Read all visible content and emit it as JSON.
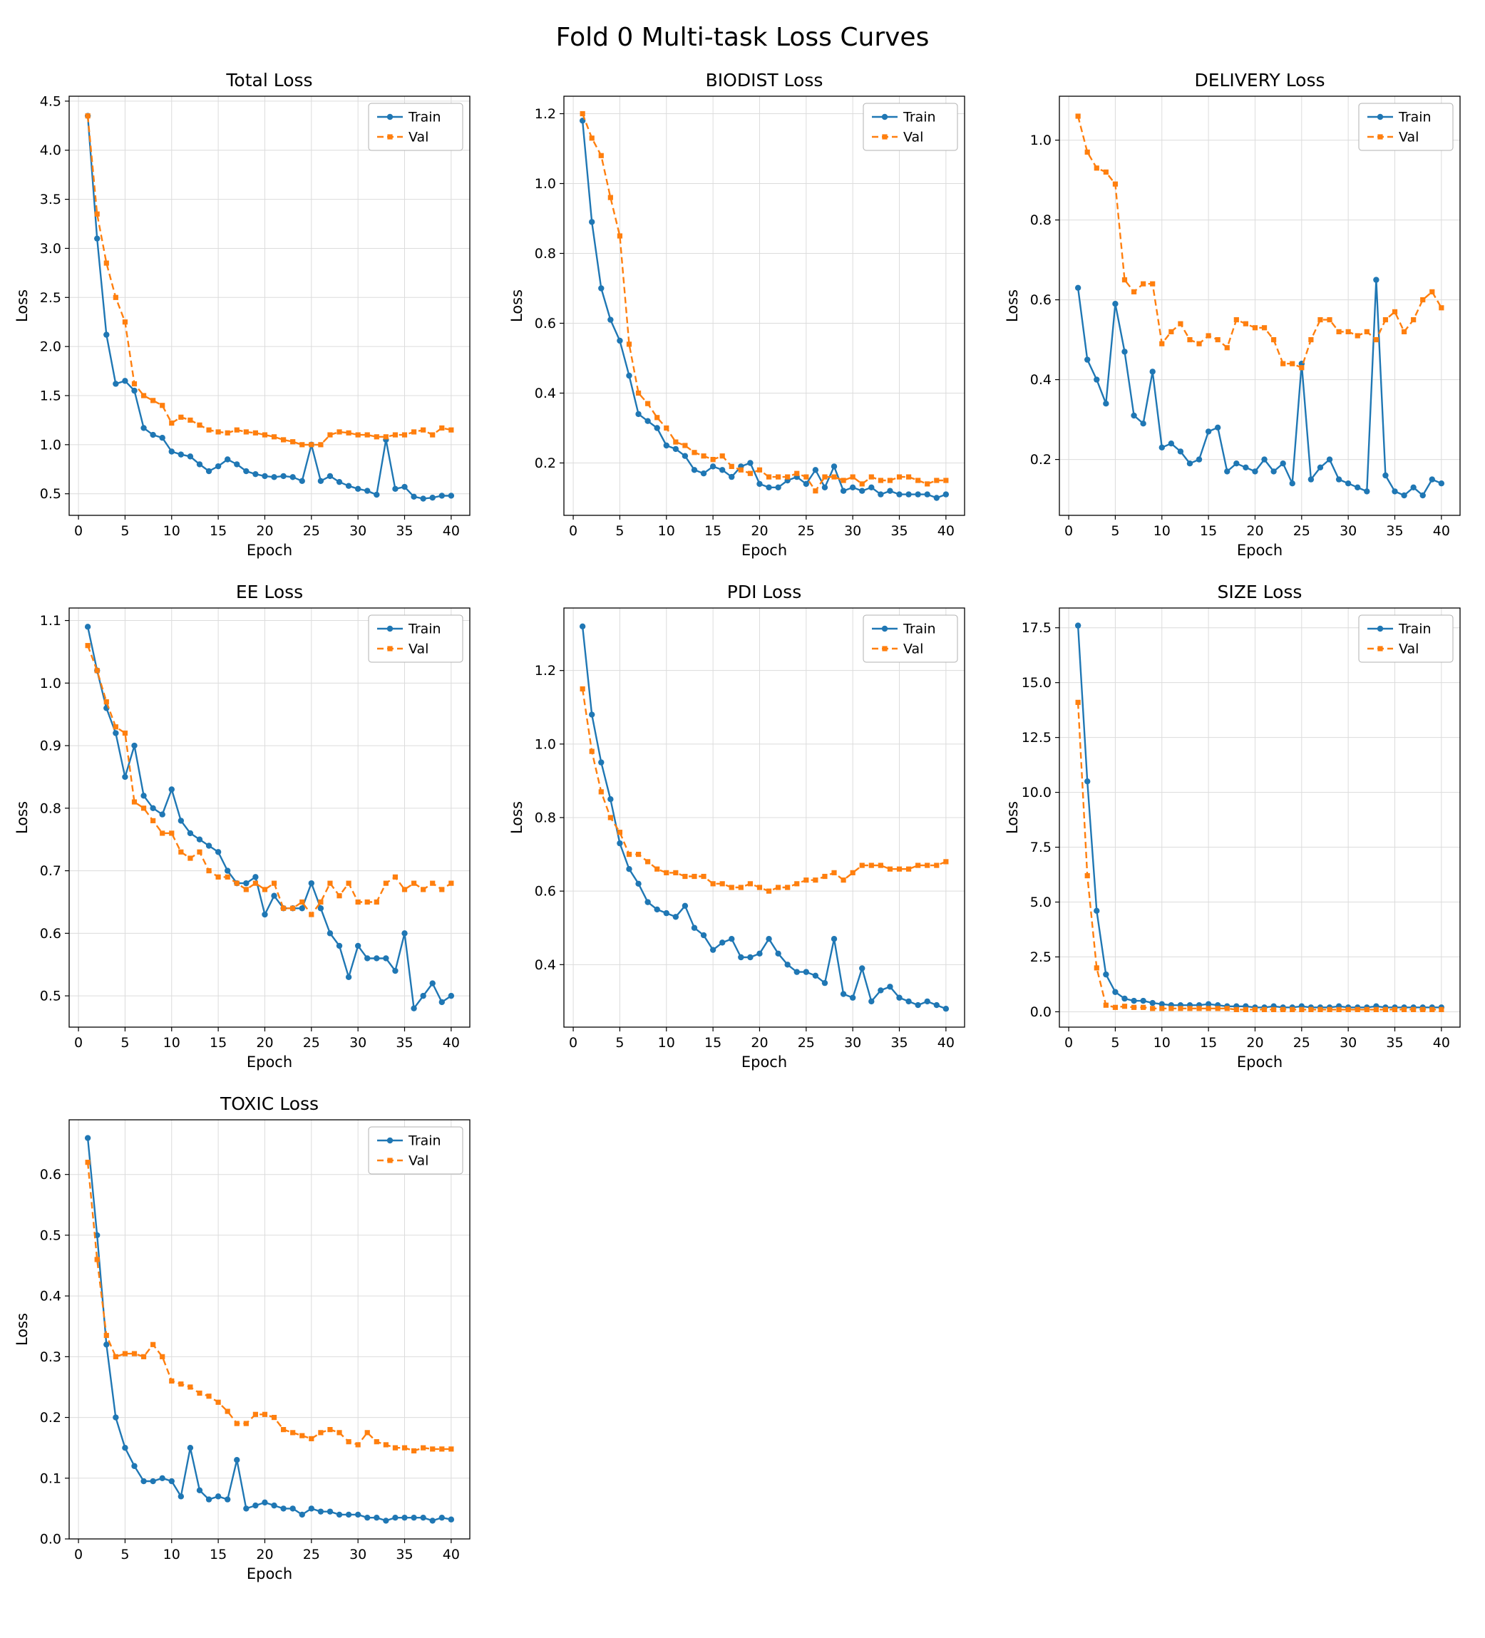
{
  "figure": {
    "title": "Fold 0 Multi-task Loss Curves"
  },
  "legend": {
    "train_label": "Train",
    "val_label": "Val",
    "position": "upper right"
  },
  "colors": {
    "train": "#1f77b4",
    "val": "#ff7f0e"
  },
  "epochs": [
    1,
    2,
    3,
    4,
    5,
    6,
    7,
    8,
    9,
    10,
    11,
    12,
    13,
    14,
    15,
    16,
    17,
    18,
    19,
    20,
    21,
    22,
    23,
    24,
    25,
    26,
    27,
    28,
    29,
    30,
    31,
    32,
    33,
    34,
    35,
    36,
    37,
    38,
    39,
    40
  ],
  "chart_data": [
    {
      "type": "line",
      "title": "Total Loss",
      "xlabel": "Epoch",
      "ylabel": "Loss",
      "xlim": [
        -1,
        42
      ],
      "ylim": [
        0.28,
        4.55
      ],
      "grid": true,
      "legend_position": "upper right",
      "xticks": [
        0,
        5,
        10,
        15,
        20,
        25,
        30,
        35,
        40
      ],
      "yticks": [
        0.5,
        1.0,
        1.5,
        2.0,
        2.5,
        3.0,
        3.5,
        4.0,
        4.5
      ],
      "series": [
        {
          "name": "Train",
          "color": "#1f77b4",
          "marker": "circle",
          "line": "solid",
          "values": [
            4.35,
            3.1,
            2.12,
            1.62,
            1.65,
            1.55,
            1.17,
            1.1,
            1.07,
            0.93,
            0.9,
            0.88,
            0.8,
            0.73,
            0.78,
            0.85,
            0.8,
            0.73,
            0.7,
            0.68,
            0.67,
            0.68,
            0.67,
            0.63,
            1.0,
            0.63,
            0.68,
            0.62,
            0.58,
            0.55,
            0.53,
            0.49,
            1.05,
            0.55,
            0.57,
            0.47,
            0.45,
            0.46,
            0.48,
            0.48
          ]
        },
        {
          "name": "Val",
          "color": "#ff7f0e",
          "marker": "square",
          "line": "dashed",
          "values": [
            4.35,
            3.35,
            2.85,
            2.5,
            2.25,
            1.62,
            1.5,
            1.45,
            1.4,
            1.22,
            1.28,
            1.25,
            1.2,
            1.15,
            1.13,
            1.12,
            1.15,
            1.13,
            1.12,
            1.1,
            1.08,
            1.05,
            1.03,
            1.0,
            1.0,
            1.0,
            1.1,
            1.13,
            1.12,
            1.1,
            1.1,
            1.08,
            1.08,
            1.1,
            1.1,
            1.13,
            1.15,
            1.1,
            1.17,
            1.15
          ]
        }
      ]
    },
    {
      "type": "line",
      "title": "BIODIST Loss",
      "xlabel": "Epoch",
      "ylabel": "Loss",
      "xlim": [
        -1,
        42
      ],
      "ylim": [
        0.05,
        1.25
      ],
      "grid": true,
      "legend_position": "upper right",
      "xticks": [
        0,
        5,
        10,
        15,
        20,
        25,
        30,
        35,
        40
      ],
      "yticks": [
        0.2,
        0.4,
        0.6,
        0.8,
        1.0,
        1.2
      ],
      "series": [
        {
          "name": "Train",
          "color": "#1f77b4",
          "marker": "circle",
          "line": "solid",
          "values": [
            1.18,
            0.89,
            0.7,
            0.61,
            0.55,
            0.45,
            0.34,
            0.32,
            0.3,
            0.25,
            0.24,
            0.22,
            0.18,
            0.17,
            0.19,
            0.18,
            0.16,
            0.19,
            0.2,
            0.14,
            0.13,
            0.13,
            0.15,
            0.16,
            0.14,
            0.18,
            0.13,
            0.19,
            0.12,
            0.13,
            0.12,
            0.13,
            0.11,
            0.12,
            0.11,
            0.11,
            0.11,
            0.11,
            0.1,
            0.11
          ]
        },
        {
          "name": "Val",
          "color": "#ff7f0e",
          "marker": "square",
          "line": "dashed",
          "values": [
            1.2,
            1.13,
            1.08,
            0.96,
            0.85,
            0.54,
            0.4,
            0.37,
            0.33,
            0.3,
            0.26,
            0.25,
            0.23,
            0.22,
            0.21,
            0.22,
            0.19,
            0.18,
            0.17,
            0.18,
            0.16,
            0.16,
            0.16,
            0.17,
            0.16,
            0.12,
            0.16,
            0.16,
            0.15,
            0.16,
            0.14,
            0.16,
            0.15,
            0.15,
            0.16,
            0.16,
            0.15,
            0.14,
            0.15,
            0.15
          ]
        }
      ]
    },
    {
      "type": "line",
      "title": "DELIVERY Loss",
      "xlabel": "Epoch",
      "ylabel": "Loss",
      "xlim": [
        -1,
        42
      ],
      "ylim": [
        0.06,
        1.11
      ],
      "grid": true,
      "legend_position": "upper right",
      "xticks": [
        0,
        5,
        10,
        15,
        20,
        25,
        30,
        35,
        40
      ],
      "yticks": [
        0.2,
        0.4,
        0.6,
        0.8,
        1.0
      ],
      "series": [
        {
          "name": "Train",
          "color": "#1f77b4",
          "marker": "circle",
          "line": "solid",
          "values": [
            0.63,
            0.45,
            0.4,
            0.34,
            0.59,
            0.47,
            0.31,
            0.29,
            0.42,
            0.23,
            0.24,
            0.22,
            0.19,
            0.2,
            0.27,
            0.28,
            0.17,
            0.19,
            0.18,
            0.17,
            0.2,
            0.17,
            0.19,
            0.14,
            0.44,
            0.15,
            0.18,
            0.2,
            0.15,
            0.14,
            0.13,
            0.12,
            0.65,
            0.16,
            0.12,
            0.11,
            0.13,
            0.11,
            0.15,
            0.14
          ]
        },
        {
          "name": "Val",
          "color": "#ff7f0e",
          "marker": "square",
          "line": "dashed",
          "values": [
            1.06,
            0.97,
            0.93,
            0.92,
            0.89,
            0.65,
            0.62,
            0.64,
            0.64,
            0.49,
            0.52,
            0.54,
            0.5,
            0.49,
            0.51,
            0.5,
            0.48,
            0.55,
            0.54,
            0.53,
            0.53,
            0.5,
            0.44,
            0.44,
            0.43,
            0.5,
            0.55,
            0.55,
            0.52,
            0.52,
            0.51,
            0.52,
            0.5,
            0.55,
            0.57,
            0.52,
            0.55,
            0.6,
            0.62,
            0.58
          ]
        }
      ]
    },
    {
      "type": "line",
      "title": "EE Loss",
      "xlabel": "Epoch",
      "ylabel": "Loss",
      "xlim": [
        -1,
        42
      ],
      "ylim": [
        0.45,
        1.12
      ],
      "grid": true,
      "legend_position": "upper right",
      "xticks": [
        0,
        5,
        10,
        15,
        20,
        25,
        30,
        35,
        40
      ],
      "yticks": [
        0.5,
        0.6,
        0.7,
        0.8,
        0.9,
        1.0,
        1.1
      ],
      "series": [
        {
          "name": "Train",
          "color": "#1f77b4",
          "marker": "circle",
          "line": "solid",
          "values": [
            1.09,
            1.02,
            0.96,
            0.92,
            0.85,
            0.9,
            0.82,
            0.8,
            0.79,
            0.83,
            0.78,
            0.76,
            0.75,
            0.74,
            0.73,
            0.7,
            0.68,
            0.68,
            0.69,
            0.63,
            0.66,
            0.64,
            0.64,
            0.64,
            0.68,
            0.64,
            0.6,
            0.58,
            0.53,
            0.58,
            0.56,
            0.56,
            0.56,
            0.54,
            0.6,
            0.48,
            0.5,
            0.52,
            0.49,
            0.5
          ]
        },
        {
          "name": "Val",
          "color": "#ff7f0e",
          "marker": "square",
          "line": "dashed",
          "values": [
            1.06,
            1.02,
            0.97,
            0.93,
            0.92,
            0.81,
            0.8,
            0.78,
            0.76,
            0.76,
            0.73,
            0.72,
            0.73,
            0.7,
            0.69,
            0.69,
            0.68,
            0.67,
            0.68,
            0.67,
            0.68,
            0.64,
            0.64,
            0.65,
            0.63,
            0.65,
            0.68,
            0.66,
            0.68,
            0.65,
            0.65,
            0.65,
            0.68,
            0.69,
            0.67,
            0.68,
            0.67,
            0.68,
            0.67,
            0.68
          ]
        }
      ]
    },
    {
      "type": "line",
      "title": "PDI Loss",
      "xlabel": "Epoch",
      "ylabel": "Loss",
      "xlim": [
        -1,
        42
      ],
      "ylim": [
        0.23,
        1.37
      ],
      "grid": true,
      "legend_position": "upper right",
      "xticks": [
        0,
        5,
        10,
        15,
        20,
        25,
        30,
        35,
        40
      ],
      "yticks": [
        0.4,
        0.6,
        0.8,
        1.0,
        1.2
      ],
      "series": [
        {
          "name": "Train",
          "color": "#1f77b4",
          "marker": "circle",
          "line": "solid",
          "values": [
            1.32,
            1.08,
            0.95,
            0.85,
            0.73,
            0.66,
            0.62,
            0.57,
            0.55,
            0.54,
            0.53,
            0.56,
            0.5,
            0.48,
            0.44,
            0.46,
            0.47,
            0.42,
            0.42,
            0.43,
            0.47,
            0.43,
            0.4,
            0.38,
            0.38,
            0.37,
            0.35,
            0.47,
            0.32,
            0.31,
            0.39,
            0.3,
            0.33,
            0.34,
            0.31,
            0.3,
            0.29,
            0.3,
            0.29,
            0.28
          ]
        },
        {
          "name": "Val",
          "color": "#ff7f0e",
          "marker": "square",
          "line": "dashed",
          "values": [
            1.15,
            0.98,
            0.87,
            0.8,
            0.76,
            0.7,
            0.7,
            0.68,
            0.66,
            0.65,
            0.65,
            0.64,
            0.64,
            0.64,
            0.62,
            0.62,
            0.61,
            0.61,
            0.62,
            0.61,
            0.6,
            0.61,
            0.61,
            0.62,
            0.63,
            0.63,
            0.64,
            0.65,
            0.63,
            0.65,
            0.67,
            0.67,
            0.67,
            0.66,
            0.66,
            0.66,
            0.67,
            0.67,
            0.67,
            0.68
          ]
        }
      ]
    },
    {
      "type": "line",
      "title": "SIZE Loss",
      "xlabel": "Epoch",
      "ylabel": "Loss",
      "xlim": [
        -1,
        42
      ],
      "ylim": [
        -0.7,
        18.4
      ],
      "grid": true,
      "legend_position": "upper right",
      "xticks": [
        0,
        5,
        10,
        15,
        20,
        25,
        30,
        35,
        40
      ],
      "yticks": [
        0.0,
        2.5,
        5.0,
        7.5,
        10.0,
        12.5,
        15.0,
        17.5
      ],
      "series": [
        {
          "name": "Train",
          "color": "#1f77b4",
          "marker": "circle",
          "line": "solid",
          "values": [
            17.6,
            10.5,
            4.6,
            1.7,
            0.9,
            0.6,
            0.5,
            0.5,
            0.4,
            0.35,
            0.3,
            0.3,
            0.3,
            0.3,
            0.35,
            0.3,
            0.25,
            0.25,
            0.25,
            0.2,
            0.2,
            0.25,
            0.2,
            0.2,
            0.25,
            0.2,
            0.2,
            0.2,
            0.25,
            0.2,
            0.2,
            0.2,
            0.25,
            0.2,
            0.2,
            0.2,
            0.2,
            0.2,
            0.2,
            0.2
          ]
        },
        {
          "name": "Val",
          "color": "#ff7f0e",
          "marker": "square",
          "line": "dashed",
          "values": [
            14.1,
            6.2,
            2.0,
            0.3,
            0.2,
            0.25,
            0.2,
            0.2,
            0.15,
            0.15,
            0.15,
            0.15,
            0.15,
            0.15,
            0.15,
            0.15,
            0.15,
            0.1,
            0.1,
            0.1,
            0.1,
            0.1,
            0.1,
            0.1,
            0.1,
            0.1,
            0.1,
            0.1,
            0.1,
            0.1,
            0.1,
            0.1,
            0.1,
            0.1,
            0.1,
            0.1,
            0.1,
            0.1,
            0.1,
            0.1
          ]
        }
      ]
    },
    {
      "type": "line",
      "title": "TOXIC Loss",
      "xlabel": "Epoch",
      "ylabel": "Loss",
      "xlim": [
        -1,
        42
      ],
      "ylim": [
        0.0,
        0.69
      ],
      "grid": true,
      "legend_position": "upper right",
      "xticks": [
        0,
        5,
        10,
        15,
        20,
        25,
        30,
        35,
        40
      ],
      "yticks": [
        0.0,
        0.1,
        0.2,
        0.3,
        0.4,
        0.5,
        0.6
      ],
      "series": [
        {
          "name": "Train",
          "color": "#1f77b4",
          "marker": "circle",
          "line": "solid",
          "values": [
            0.66,
            0.5,
            0.32,
            0.2,
            0.15,
            0.12,
            0.095,
            0.095,
            0.1,
            0.095,
            0.07,
            0.15,
            0.08,
            0.065,
            0.07,
            0.065,
            0.13,
            0.05,
            0.055,
            0.06,
            0.055,
            0.05,
            0.05,
            0.04,
            0.05,
            0.045,
            0.045,
            0.04,
            0.04,
            0.04,
            0.035,
            0.035,
            0.03,
            0.035,
            0.035,
            0.035,
            0.035,
            0.03,
            0.035,
            0.032
          ]
        },
        {
          "name": "Val",
          "color": "#ff7f0e",
          "marker": "square",
          "line": "dashed",
          "values": [
            0.62,
            0.46,
            0.335,
            0.3,
            0.305,
            0.305,
            0.3,
            0.32,
            0.3,
            0.26,
            0.255,
            0.25,
            0.24,
            0.235,
            0.225,
            0.21,
            0.19,
            0.19,
            0.205,
            0.205,
            0.2,
            0.18,
            0.175,
            0.17,
            0.165,
            0.175,
            0.18,
            0.175,
            0.16,
            0.155,
            0.175,
            0.16,
            0.155,
            0.15,
            0.15,
            0.145,
            0.15,
            0.148,
            0.148,
            0.148
          ]
        }
      ]
    }
  ]
}
